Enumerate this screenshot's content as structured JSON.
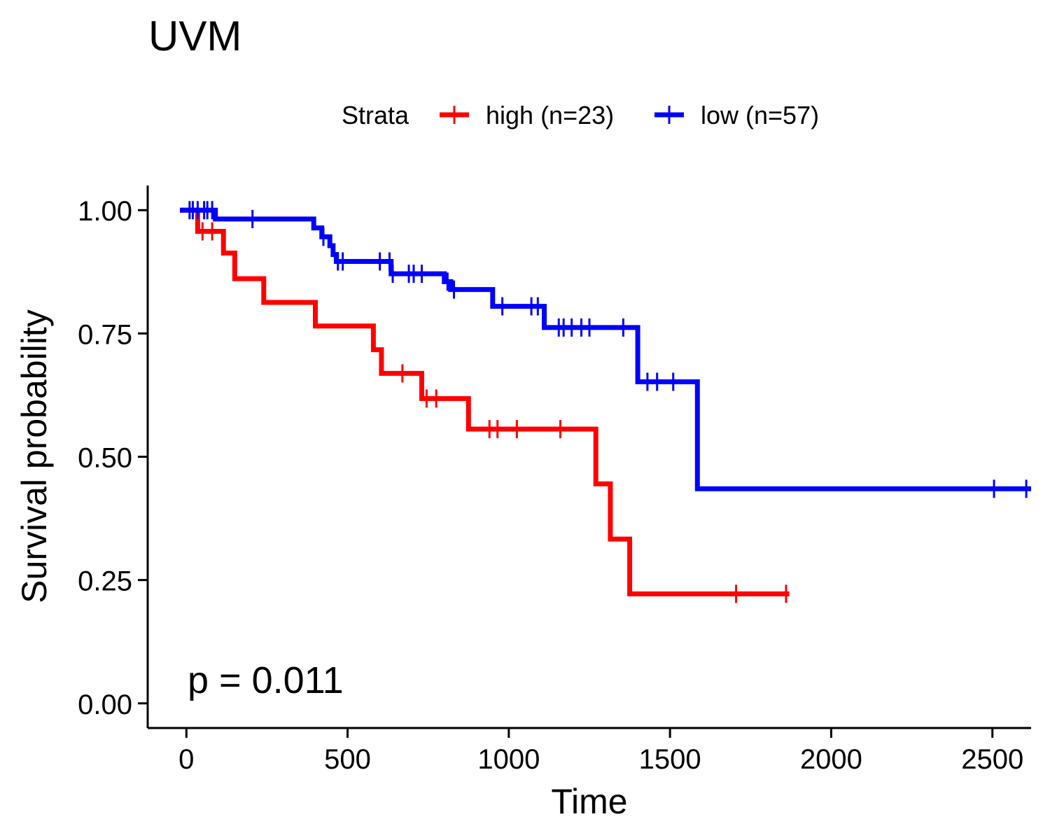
{
  "chart_data": {
    "type": "line",
    "subtype": "kaplan-meier",
    "title": "UVM",
    "xlabel": "Time",
    "ylabel": "Survival probability",
    "xlim": [
      -120,
      2620
    ],
    "ylim": [
      -0.05,
      1.05
    ],
    "xticks": [
      0,
      500,
      1000,
      1500,
      2000,
      2500
    ],
    "yticks": [
      0,
      0.25,
      0.5,
      0.75,
      1
    ],
    "ytick_labels": [
      "0.00",
      "0.25",
      "0.50",
      "0.75",
      "1.00"
    ],
    "grid": false,
    "legend": {
      "title": "Strata",
      "position": "top"
    },
    "annotation": "p = 0.011",
    "series": [
      {
        "name": "high (n=23)",
        "color": "#ff0000",
        "steps": [
          [
            -20,
            1.0
          ],
          [
            35,
            0.957
          ],
          [
            115,
            0.913
          ],
          [
            150,
            0.861
          ],
          [
            240,
            0.813
          ],
          [
            400,
            0.765
          ],
          [
            580,
            0.717
          ],
          [
            605,
            0.669
          ],
          [
            730,
            0.618
          ],
          [
            875,
            0.556
          ],
          [
            1270,
            0.445
          ],
          [
            1315,
            0.333
          ],
          [
            1375,
            0.222
          ],
          [
            1870,
            0.222
          ]
        ],
        "censors": [
          [
            50,
            0.957
          ],
          [
            80,
            0.957
          ],
          [
            670,
            0.669
          ],
          [
            745,
            0.618
          ],
          [
            775,
            0.618
          ],
          [
            940,
            0.556
          ],
          [
            965,
            0.556
          ],
          [
            1025,
            0.556
          ],
          [
            1160,
            0.556
          ],
          [
            1705,
            0.222
          ],
          [
            1860,
            0.222
          ]
        ]
      },
      {
        "name": "low (n=57)",
        "color": "#0000ff",
        "steps": [
          [
            -20,
            1.0
          ],
          [
            90,
            0.982
          ],
          [
            395,
            0.964
          ],
          [
            420,
            0.946
          ],
          [
            445,
            0.928
          ],
          [
            455,
            0.91
          ],
          [
            465,
            0.896
          ],
          [
            635,
            0.871
          ],
          [
            800,
            0.855
          ],
          [
            820,
            0.839
          ],
          [
            950,
            0.805
          ],
          [
            1110,
            0.762
          ],
          [
            1400,
            0.652
          ],
          [
            1585,
            0.435
          ],
          [
            2620,
            0.435
          ]
        ],
        "censors": [
          [
            10,
            1.0
          ],
          [
            20,
            1.0
          ],
          [
            35,
            1.0
          ],
          [
            55,
            1.0
          ],
          [
            65,
            1.0
          ],
          [
            80,
            1.0
          ],
          [
            205,
            0.982
          ],
          [
            425,
            0.946
          ],
          [
            470,
            0.896
          ],
          [
            485,
            0.896
          ],
          [
            600,
            0.896
          ],
          [
            630,
            0.896
          ],
          [
            640,
            0.871
          ],
          [
            690,
            0.871
          ],
          [
            705,
            0.871
          ],
          [
            730,
            0.871
          ],
          [
            810,
            0.855
          ],
          [
            830,
            0.839
          ],
          [
            980,
            0.805
          ],
          [
            1070,
            0.805
          ],
          [
            1090,
            0.805
          ],
          [
            1155,
            0.762
          ],
          [
            1170,
            0.762
          ],
          [
            1195,
            0.762
          ],
          [
            1225,
            0.762
          ],
          [
            1250,
            0.762
          ],
          [
            1355,
            0.762
          ],
          [
            1430,
            0.652
          ],
          [
            1460,
            0.652
          ],
          [
            1510,
            0.652
          ],
          [
            2505,
            0.435
          ],
          [
            2605,
            0.435
          ]
        ]
      }
    ]
  }
}
